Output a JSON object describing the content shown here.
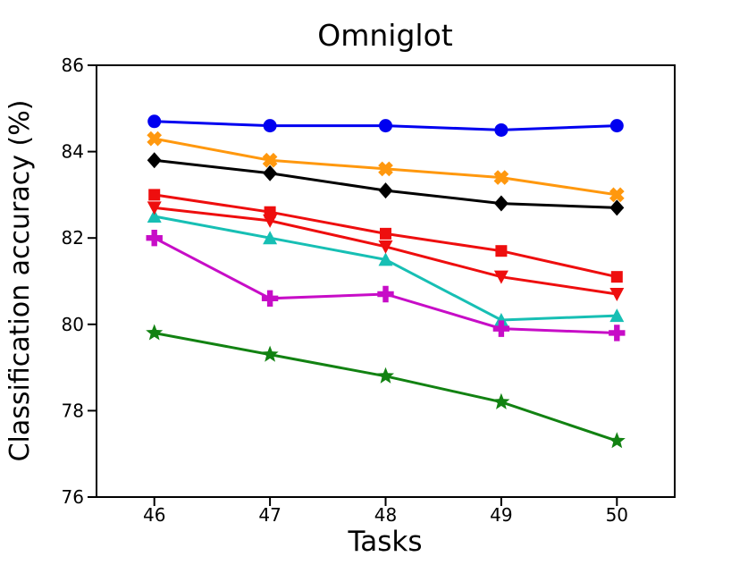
{
  "chart_data": {
    "type": "line",
    "title": "Omniglot",
    "xlabel": "Tasks",
    "ylabel": "Classification accuracy (%)",
    "x": [
      46,
      47,
      48,
      49,
      50
    ],
    "xtick_labels": [
      "46",
      "47",
      "48",
      "49",
      "50"
    ],
    "ytick_labels": [
      "86",
      "84",
      "82",
      "80",
      "78",
      "76"
    ],
    "yticks": [
      86,
      84,
      82,
      80,
      78,
      76
    ],
    "xlim": [
      45.5,
      50.5
    ],
    "ylim": [
      76,
      86
    ],
    "grid": false,
    "legend_position": "none",
    "axis_color": "#000000",
    "series": [
      {
        "name": "blue-circle",
        "marker": "circle",
        "color": "#0000f0",
        "values": [
          84.7,
          84.6,
          84.6,
          84.5,
          84.6
        ]
      },
      {
        "name": "orange-x",
        "marker": "x-filled",
        "color": "#ff980e",
        "values": [
          84.3,
          83.8,
          83.6,
          83.4,
          83.0
        ]
      },
      {
        "name": "black-diamond",
        "marker": "diamond",
        "color": "#000000",
        "values": [
          83.8,
          83.5,
          83.1,
          82.8,
          82.7
        ]
      },
      {
        "name": "red-square",
        "marker": "square",
        "color": "#ee0e0e",
        "values": [
          83.0,
          82.6,
          82.1,
          81.7,
          81.1
        ]
      },
      {
        "name": "cyan-triangle-up",
        "marker": "triangle-up",
        "color": "#17bfb4",
        "values": [
          82.5,
          82.0,
          81.5,
          80.1,
          80.2
        ]
      },
      {
        "name": "red-triangle-down",
        "marker": "triangle-down",
        "color": "#ee0e0e",
        "values": [
          82.7,
          82.4,
          81.8,
          81.1,
          80.7
        ]
      },
      {
        "name": "magenta-plus",
        "marker": "plus",
        "color": "#c70dc7",
        "values": [
          82.0,
          80.6,
          80.7,
          79.9,
          79.8
        ]
      },
      {
        "name": "green-star",
        "marker": "star",
        "color": "#128212",
        "values": [
          79.8,
          79.3,
          78.8,
          78.2,
          77.3
        ]
      }
    ]
  }
}
